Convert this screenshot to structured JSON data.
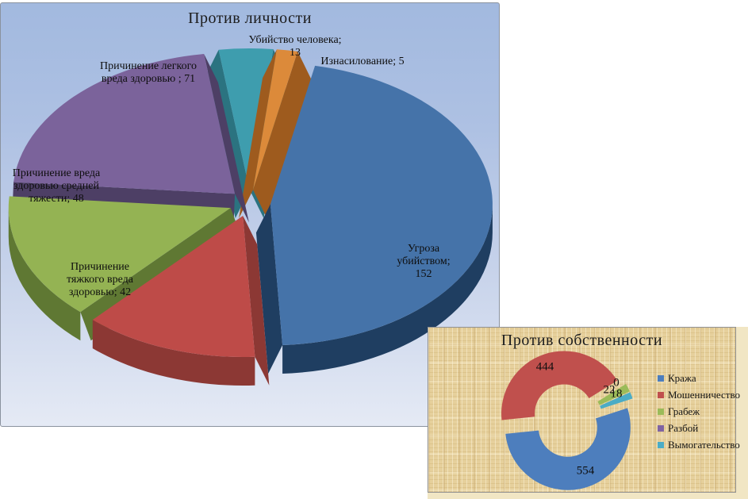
{
  "chart_data": [
    {
      "type": "pie",
      "variant": "3d-exploded",
      "title": "Против личности",
      "legend": false,
      "start_angle_deg": -8,
      "categories": [
        "Убийство человека",
        "Изнасилование",
        "Угроза убийством",
        "Причинение тяжкого вреда здоровью",
        "Причинение вреда здоровью средней тяжести",
        "Причинение легкого вреда здоровью"
      ],
      "values": [
        13,
        5,
        152,
        42,
        48,
        71
      ],
      "data_labels": [
        "Убийство человека;\n13",
        "Изнасилование; 5",
        "Угроза убийством;\n152",
        "Причинение\nтяжкого вреда\nздоровью; 42",
        "Причинение вреда\nздоровью средней\nтяжести; 48",
        "Причинение легкого\nвреда здоровью ; 71"
      ],
      "colors": [
        "#3E9DAE",
        "#DC8A3A",
        "#4573A9",
        "#BE4B48",
        "#94B353",
        "#7B639B"
      ],
      "side_colors": [
        "#2B7380",
        "#9E5B1E",
        "#1F3E61",
        "#8C3834",
        "#5F7833",
        "#4D3F65"
      ],
      "background": "blue-gradient"
    },
    {
      "type": "doughnut",
      "variant": "exploded",
      "title": "Против собственности",
      "legend_position": "right",
      "start_angle_deg": 72,
      "categories": [
        "Кража",
        "Мошенничество",
        "Грабеж",
        "Разбой",
        "Вымогательство"
      ],
      "values": [
        554,
        444,
        22,
        0,
        18
      ],
      "data_labels": [
        "554",
        "444",
        "22",
        "0",
        "18"
      ],
      "colors": [
        "#4D7EBD",
        "#C0504D",
        "#9BBB59",
        "#8064A2",
        "#4BACC6"
      ],
      "background": "parchment-texture"
    }
  ]
}
